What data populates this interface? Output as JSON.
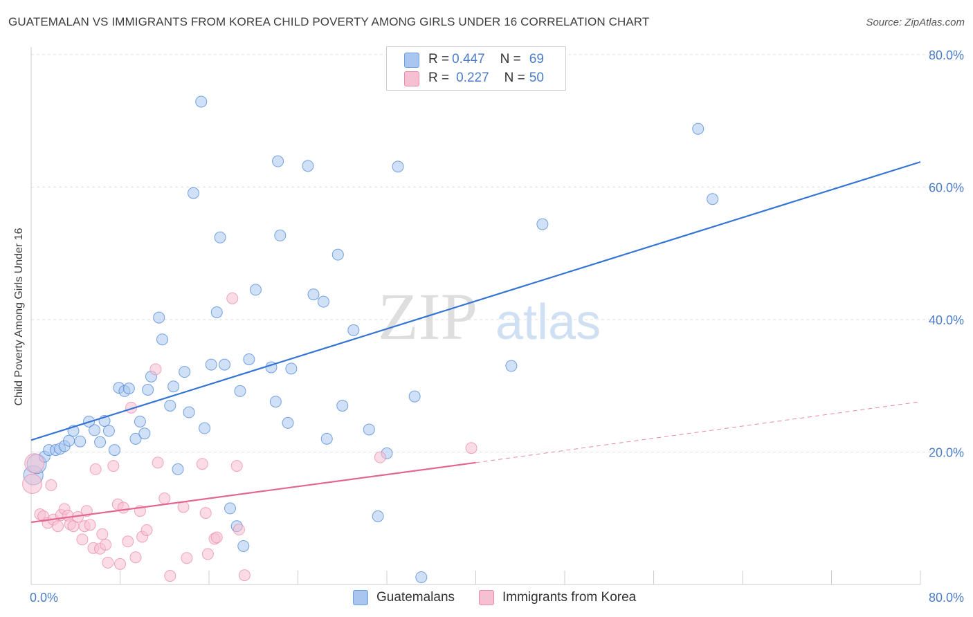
{
  "title": "GUATEMALAN VS IMMIGRANTS FROM KOREA CHILD POVERTY AMONG GIRLS UNDER 16 CORRELATION CHART",
  "source": "Source: ZipAtlas.com",
  "watermark": {
    "part1": "ZIP",
    "part2": "atlas"
  },
  "legend": {
    "rows": [
      {
        "r_label": "R = ",
        "r_value": "0.447",
        "n_label": "N = ",
        "n_value": "69",
        "color": "#a9c6f0",
        "border": "#6f9ee0"
      },
      {
        "r_label": "R = ",
        "r_value": "0.227",
        "n_label": "N = ",
        "n_value": "50",
        "color": "#f7c0d2",
        "border": "#e98aab"
      }
    ]
  },
  "bottom_legend": [
    {
      "label": "Guatemalans",
      "color": "#a9c6f0",
      "border": "#6f9ee0"
    },
    {
      "label": "Immigrants from Korea",
      "color": "#f7c0d2",
      "border": "#e98aab"
    }
  ],
  "chart_data": {
    "type": "scatter",
    "title": "GUATEMALAN VS IMMIGRANTS FROM KOREA CHILD POVERTY AMONG GIRLS UNDER 16 CORRELATION CHART",
    "xlabel": "",
    "ylabel": "Child Poverty Among Girls Under 16",
    "xlim": [
      0,
      80
    ],
    "ylim": [
      0,
      80
    ],
    "x_tick_labels": [
      "0.0%",
      "80.0%"
    ],
    "y_tick_labels": [
      "20.0%",
      "40.0%",
      "60.0%",
      "80.0%"
    ],
    "y_ticks": [
      20,
      40,
      60,
      80
    ],
    "grid": true,
    "legend_position": "top-center",
    "series": [
      {
        "name": "Guatemalans",
        "color": "#4a86d8",
        "fill": "#a9c6f0",
        "trend": {
          "x": [
            0,
            80
          ],
          "y": [
            21.8,
            63.8
          ],
          "color": "#3474d4"
        },
        "points": [
          [
            0.2,
            16.5
          ],
          [
            0.5,
            18.2
          ],
          [
            1.2,
            19.3
          ],
          [
            1.6,
            20.3
          ],
          [
            2.2,
            20.3
          ],
          [
            2.6,
            20.5
          ],
          [
            3.0,
            20.9
          ],
          [
            3.4,
            21.7
          ],
          [
            3.8,
            23.2
          ],
          [
            4.4,
            21.6
          ],
          [
            5.2,
            24.6
          ],
          [
            5.7,
            23.3
          ],
          [
            6.2,
            21.5
          ],
          [
            6.6,
            24.7
          ],
          [
            7.0,
            23.2
          ],
          [
            7.5,
            20.3
          ],
          [
            7.9,
            29.7
          ],
          [
            8.4,
            29.2
          ],
          [
            8.8,
            29.6
          ],
          [
            9.4,
            22.0
          ],
          [
            9.8,
            24.6
          ],
          [
            10.2,
            22.8
          ],
          [
            10.5,
            29.4
          ],
          [
            10.8,
            31.4
          ],
          [
            11.5,
            40.3
          ],
          [
            11.8,
            37.0
          ],
          [
            12.5,
            27.0
          ],
          [
            12.8,
            29.9
          ],
          [
            13.2,
            17.4
          ],
          [
            13.8,
            32.1
          ],
          [
            14.2,
            26.0
          ],
          [
            14.6,
            59.1
          ],
          [
            15.3,
            72.9
          ],
          [
            15.6,
            23.6
          ],
          [
            16.2,
            33.2
          ],
          [
            16.7,
            41.1
          ],
          [
            17.0,
            52.4
          ],
          [
            17.4,
            33.2
          ],
          [
            17.9,
            11.5
          ],
          [
            18.5,
            8.8
          ],
          [
            18.8,
            29.2
          ],
          [
            19.1,
            5.8
          ],
          [
            19.6,
            34.0
          ],
          [
            20.2,
            44.5
          ],
          [
            21.6,
            32.8
          ],
          [
            22.0,
            27.6
          ],
          [
            22.2,
            63.9
          ],
          [
            22.4,
            52.7
          ],
          [
            23.1,
            24.4
          ],
          [
            23.4,
            32.6
          ],
          [
            24.9,
            63.2
          ],
          [
            25.4,
            43.8
          ],
          [
            26.3,
            42.7
          ],
          [
            26.6,
            22.0
          ],
          [
            27.6,
            49.8
          ],
          [
            28.0,
            27.0
          ],
          [
            29.0,
            38.4
          ],
          [
            30.4,
            23.4
          ],
          [
            31.2,
            10.3
          ],
          [
            32.0,
            19.8
          ],
          [
            33.0,
            63.1
          ],
          [
            34.5,
            28.4
          ],
          [
            35.1,
            1.1
          ],
          [
            43.2,
            33.0
          ],
          [
            46.0,
            54.4
          ],
          [
            60.0,
            68.8
          ],
          [
            61.3,
            58.2
          ]
        ]
      },
      {
        "name": "Immigrants from Korea",
        "color": "#e98aab",
        "fill": "#f7c0d2",
        "trend": {
          "x": [
            0,
            40
          ],
          "y": [
            9.4,
            18.4
          ],
          "color": "#e2678f"
        },
        "trend_dashed": {
          "x": [
            40,
            80
          ],
          "y": [
            18.4,
            27.6
          ]
        },
        "points": [
          [
            0.1,
            15.2
          ],
          [
            0.3,
            18.3
          ],
          [
            0.8,
            10.6
          ],
          [
            1.1,
            10.3
          ],
          [
            1.5,
            9.3
          ],
          [
            1.8,
            15.0
          ],
          [
            2.0,
            9.8
          ],
          [
            2.4,
            8.8
          ],
          [
            2.7,
            10.5
          ],
          [
            3.0,
            11.4
          ],
          [
            3.3,
            10.4
          ],
          [
            3.5,
            9.1
          ],
          [
            3.8,
            8.8
          ],
          [
            4.2,
            10.2
          ],
          [
            4.6,
            6.8
          ],
          [
            4.8,
            8.8
          ],
          [
            5.0,
            11.1
          ],
          [
            5.3,
            9.0
          ],
          [
            5.6,
            5.5
          ],
          [
            5.8,
            17.4
          ],
          [
            6.2,
            5.4
          ],
          [
            6.4,
            7.6
          ],
          [
            6.7,
            6.0
          ],
          [
            6.9,
            3.3
          ],
          [
            7.4,
            17.9
          ],
          [
            7.8,
            12.1
          ],
          [
            8.0,
            3.1
          ],
          [
            8.3,
            11.6
          ],
          [
            8.7,
            6.5
          ],
          [
            9.0,
            26.7
          ],
          [
            9.4,
            4.1
          ],
          [
            9.8,
            11.1
          ],
          [
            10.0,
            7.2
          ],
          [
            10.4,
            8.2
          ],
          [
            11.2,
            32.5
          ],
          [
            11.4,
            18.4
          ],
          [
            12.0,
            13.0
          ],
          [
            12.5,
            1.3
          ],
          [
            13.7,
            11.7
          ],
          [
            14.0,
            4.0
          ],
          [
            15.4,
            18.2
          ],
          [
            15.7,
            10.8
          ],
          [
            15.9,
            4.6
          ],
          [
            16.5,
            6.9
          ],
          [
            16.7,
            7.1
          ],
          [
            18.1,
            43.2
          ],
          [
            18.5,
            17.9
          ],
          [
            18.7,
            8.3
          ],
          [
            19.2,
            1.4
          ],
          [
            31.4,
            19.2
          ],
          [
            39.6,
            20.6
          ]
        ]
      }
    ]
  }
}
